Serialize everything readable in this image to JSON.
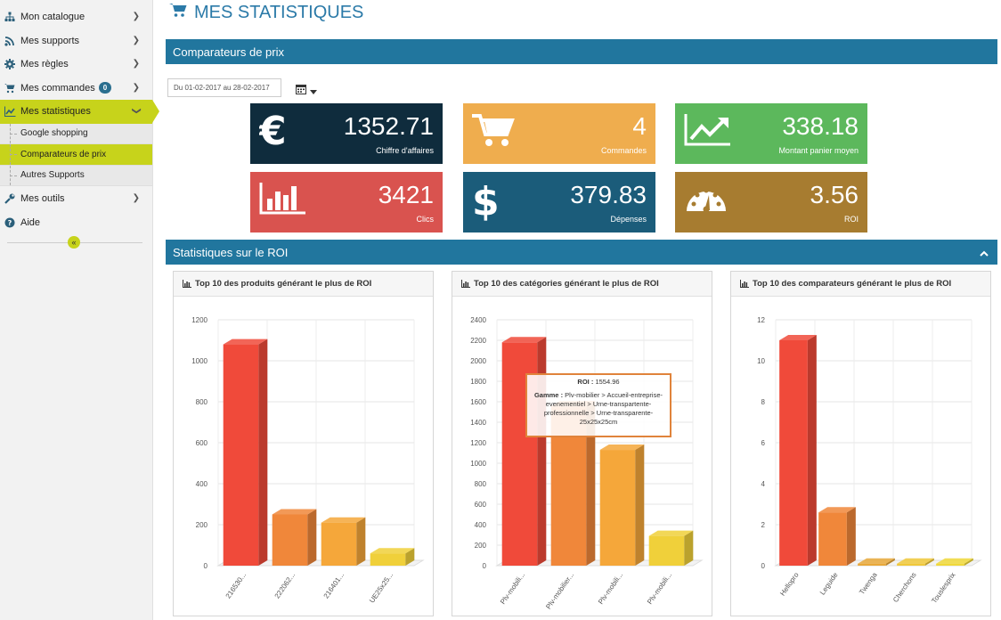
{
  "sidebar": {
    "items": [
      {
        "label": "Mon catalogue",
        "icon": "sitemap-icon"
      },
      {
        "label": "Mes supports",
        "icon": "rss-icon"
      },
      {
        "label": "Mes règles",
        "icon": "gear-icon"
      },
      {
        "label": "Mes commandes",
        "icon": "cart-icon",
        "badge": "0"
      },
      {
        "label": "Mes statistiques",
        "icon": "line-chart-icon"
      },
      {
        "label": "Mes outils",
        "icon": "wrench-icon"
      },
      {
        "label": "Aide",
        "icon": "help-icon"
      }
    ],
    "subitems": [
      {
        "label": "Google shopping"
      },
      {
        "label": "Comparateurs de prix"
      },
      {
        "label": "Autres Supports"
      }
    ],
    "collapse_label": "«"
  },
  "page": {
    "title": "MES STATISTIQUES"
  },
  "sections": {
    "comparators": "Comparateurs de prix",
    "roi": "Statistiques sur le ROI"
  },
  "date_range": "Du 01-02-2017 au 28-02-2017",
  "stats": [
    {
      "value": "1352.71",
      "label": "Chiffre d'affaires",
      "color": "#0f2c3d",
      "icon": "euro-icon"
    },
    {
      "value": "4",
      "label": "Commandes",
      "color": "#efad4e",
      "icon": "cart-icon"
    },
    {
      "value": "338.18",
      "label": "Montant panier moyen",
      "color": "#5cb85c",
      "icon": "trend-icon"
    },
    {
      "value": "3421",
      "label": "Clics",
      "color": "#d9534f",
      "icon": "bar-chart-icon"
    },
    {
      "value": "379.83",
      "label": "Dépenses",
      "color": "#1b5c7a",
      "icon": "dollar-icon"
    },
    {
      "value": "3.56",
      "label": "ROI",
      "color": "#a77c30",
      "icon": "gauge-icon"
    }
  ],
  "panels": [
    {
      "title": "Top 10 des produits générant le plus de ROI"
    },
    {
      "title": "Top 10 des catégories générant le plus de ROI"
    },
    {
      "title": "Top 10 des comparateurs générant le plus de ROI"
    }
  ],
  "tooltip": {
    "roi_label": "ROI :",
    "roi_value": "1554.96",
    "gamme_label": "Gamme :",
    "gamme_value": "Plv-mobilier > Accueil-entreprise-evenementiel > Urne-transpartente-professionnelle > Urne-transparente-25x25x25cm"
  },
  "chart_data": [
    {
      "type": "bar",
      "categories": [
        "216530...",
        "222062...",
        "216401...",
        "UE25x25..."
      ],
      "values": [
        1080,
        250,
        210,
        60
      ],
      "ylim": [
        0,
        1200
      ],
      "yticks": [
        0,
        200,
        400,
        600,
        800,
        1000,
        1200
      ],
      "colors": [
        "#f04a3a",
        "#f0873a",
        "#f5a73a",
        "#f0d03a"
      ]
    },
    {
      "type": "bar",
      "categories": [
        "Plv-mobili...",
        "Plv-mobilier...",
        "Plv-mobili...",
        "Plv-mobili..."
      ],
      "values": [
        2180,
        1554.96,
        1130,
        290
      ],
      "ylim": [
        0,
        2400
      ],
      "yticks": [
        0,
        200,
        400,
        600,
        800,
        1000,
        1200,
        1400,
        1600,
        1800,
        2000,
        2200,
        2400
      ],
      "colors": [
        "#f04a3a",
        "#f0873a",
        "#f5a73a",
        "#f0d03a"
      ]
    },
    {
      "type": "bar",
      "categories": [
        "Hellopro",
        "Leguide",
        "Twenga",
        "Cherchons",
        "Touslesprix"
      ],
      "values": [
        11,
        2.6,
        0.1,
        0.1,
        0.1
      ],
      "ylim": [
        0,
        12
      ],
      "yticks": [
        0,
        2,
        4,
        6,
        8,
        10,
        12
      ],
      "colors": [
        "#f04a3a",
        "#f0873a",
        "#e8a83a",
        "#f0c83a",
        "#f0d83a"
      ]
    }
  ]
}
